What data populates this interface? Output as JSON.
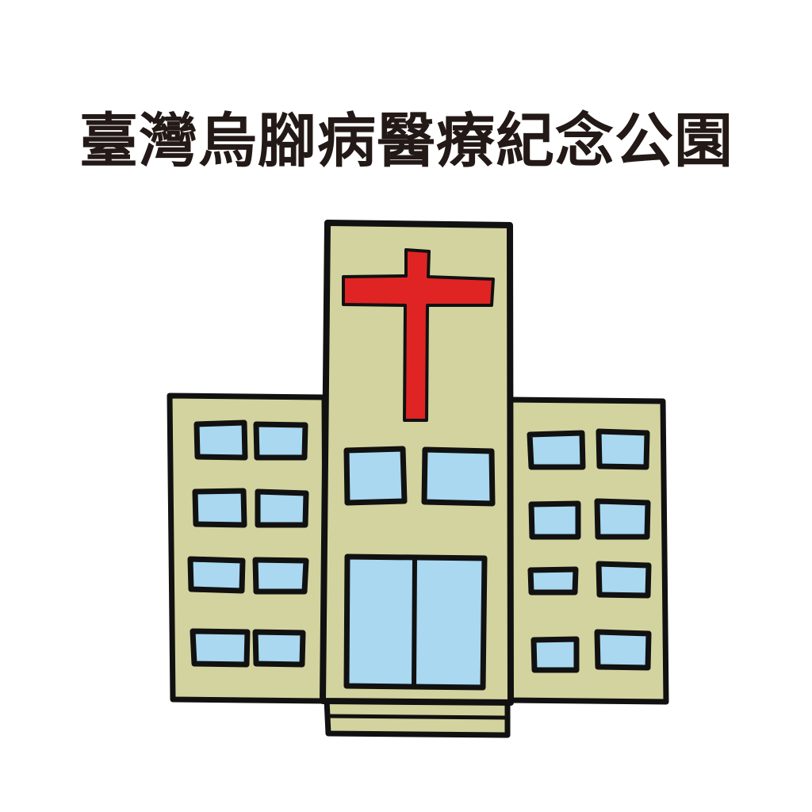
{
  "title": "臺灣烏腳病醫療紀念公園",
  "illustration": {
    "subject": "hospital-building",
    "symbol": "cross",
    "colors": {
      "outline": "#111111",
      "wall": "#d3d39f",
      "window": "#a9d8f0",
      "cross": "#e02424",
      "title": "#231916",
      "background": "#ffffff"
    }
  }
}
